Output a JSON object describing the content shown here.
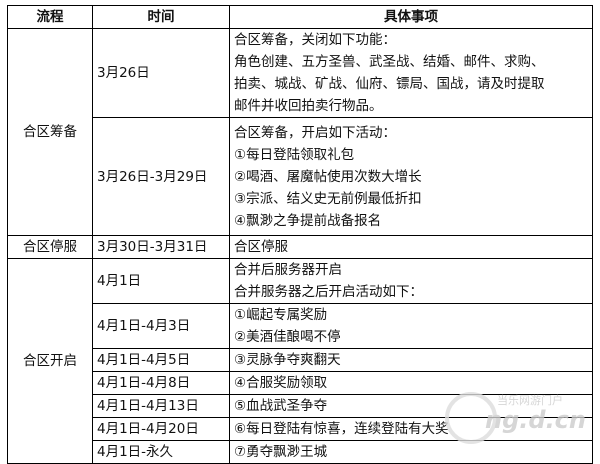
{
  "headers": [
    "流程",
    "时间",
    "具体事项"
  ],
  "groups": {
    "prep": "合区筹备",
    "stop": "合区停服",
    "open": "合区开启"
  },
  "rows": [
    {
      "time": "3月26日",
      "lines": [
        "合区筹备，关闭如下功能：",
        "角色创建、五方圣兽、武圣战、结婚、邮件、求购、",
        "拍卖、城战、矿战、仙府、镖局、国战，请及时提取",
        "邮件并收回拍卖行物品。"
      ]
    },
    {
      "time": "3月26日-3月29日",
      "lines": [
        "合区筹备，开启如下活动：",
        "①每日登陆领取礼包",
        "②喝酒、屠魔帖使用次数大增长",
        "③宗派、结义史无前例最低折扣",
        "④飘渺之争提前战备报名"
      ]
    },
    {
      "time": "3月30日-3月31日",
      "lines": [
        "合区停服"
      ]
    },
    {
      "time": "4月1日",
      "lines": [
        "合并后服务器开启",
        "合并服务器之后开启活动如下："
      ]
    },
    {
      "time": "4月1日-4月3日",
      "lines": [
        "①崛起专属奖励",
        "②美酒佳酿喝不停"
      ]
    },
    {
      "time": "4月1日-4月5日",
      "lines": [
        "③灵脉争夺爽翻天"
      ]
    },
    {
      "time": "4月1日-4月8日",
      "lines": [
        "④合服奖励领取"
      ]
    },
    {
      "time": "4月1日-4月13日",
      "lines": [
        "⑤血战武圣争夺"
      ]
    },
    {
      "time": "4月1日-4月20日",
      "lines": [
        "⑥每日登陆有惊喜，连续登陆有大奖"
      ]
    },
    {
      "time": "4月1日-永久",
      "lines": [
        "⑦勇夺飘渺王城"
      ]
    }
  ],
  "watermark": {
    "top": "当乐网游门户",
    "bottom": "ng.d.cn"
  }
}
